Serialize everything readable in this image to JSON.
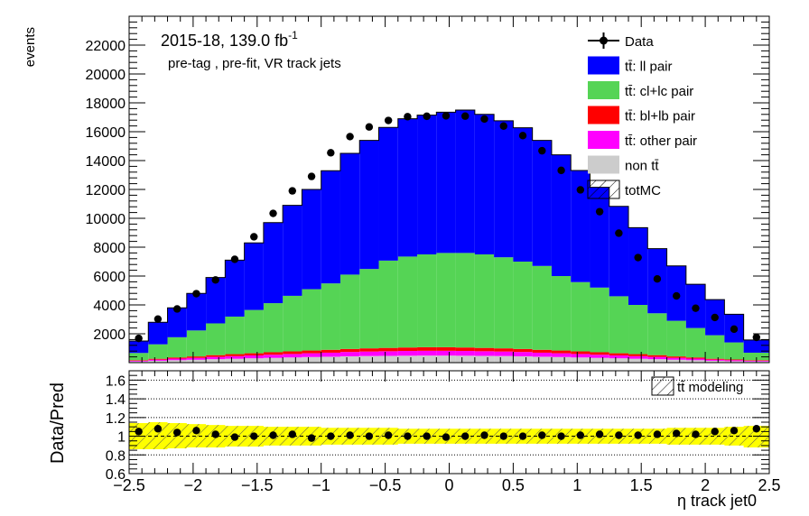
{
  "chart_data": {
    "type": "bar",
    "stacked": true,
    "y_axis_label": "events",
    "x_axis_label": "η track jet0",
    "annotation": {
      "lumi_prefix": "2015-18, 139.0 fb",
      "lumi_exp": "-1",
      "selection": "pre-tag ,  pre-fit, VR track jets"
    },
    "x_bins": [
      -2.5,
      -2.35,
      -2.2,
      -2.05,
      -1.9,
      -1.75,
      -1.6,
      -1.45,
      -1.3,
      -1.15,
      -1.0,
      -0.85,
      -0.7,
      -0.55,
      -0.4,
      -0.25,
      -0.1,
      0.05,
      0.2,
      0.35,
      0.5,
      0.65,
      0.8,
      0.95,
      1.1,
      1.25,
      1.4,
      1.55,
      1.7,
      1.85,
      2.0,
      2.15,
      2.3,
      2.5
    ],
    "xlim": [
      -2.5,
      2.5
    ],
    "main_ylim": [
      0,
      24000
    ],
    "main_yticks": [
      2000,
      4000,
      6000,
      8000,
      10000,
      12000,
      14000,
      16000,
      18000,
      20000,
      22000
    ],
    "series": [
      {
        "name": "non tt̄",
        "color": "#cccccc",
        "values": [
          80,
          130,
          170,
          200,
          240,
          270,
          300,
          330,
          360,
          390,
          410,
          440,
          460,
          470,
          480,
          490,
          490,
          480,
          470,
          460,
          440,
          410,
          390,
          360,
          330,
          300,
          270,
          240,
          200,
          170,
          130,
          100,
          80
        ]
      },
      {
        "name": "tt̄: other pair",
        "color": "#ff00ff",
        "values": [
          50,
          80,
          110,
          130,
          160,
          180,
          200,
          220,
          240,
          260,
          280,
          300,
          310,
          320,
          330,
          330,
          330,
          330,
          320,
          310,
          300,
          280,
          260,
          240,
          220,
          200,
          180,
          160,
          130,
          110,
          80,
          70,
          50
        ]
      },
      {
        "name": "tt̄: bl+lb pair",
        "color": "#ff0000",
        "values": [
          40,
          60,
          80,
          100,
          120,
          140,
          150,
          170,
          180,
          190,
          200,
          210,
          220,
          230,
          240,
          250,
          250,
          240,
          230,
          220,
          210,
          200,
          190,
          180,
          170,
          150,
          140,
          120,
          100,
          80,
          60,
          50,
          40
        ]
      },
      {
        "name": "tt̄: cl+lc pair",
        "color": "#55d455",
        "values": [
          500,
          1000,
          1400,
          1800,
          2200,
          2600,
          3000,
          3400,
          3850,
          4250,
          4600,
          5150,
          5500,
          6050,
          6300,
          6430,
          6530,
          6550,
          6480,
          6310,
          6050,
          5810,
          5160,
          4800,
          4480,
          3950,
          3410,
          2900,
          2470,
          2040,
          1630,
          1180,
          520
        ]
      },
      {
        "name": "tt̄: ll pair",
        "color": "#0000ff",
        "values": [
          830,
          1530,
          2040,
          2570,
          3180,
          3910,
          4650,
          5580,
          6270,
          6910,
          7810,
          8400,
          8910,
          9230,
          9550,
          9650,
          9750,
          9900,
          9700,
          9460,
          9270,
          8700,
          8400,
          7730,
          6950,
          6230,
          5350,
          4480,
          3800,
          3030,
          2470,
          1950,
          880
        ]
      }
    ],
    "data_points": {
      "name": "Data",
      "values": [
        1680,
        3020,
        3720,
        4780,
        5730,
        7160,
        8720,
        10340,
        11900,
        12900,
        14540,
        15660,
        16330,
        16780,
        17040,
        17070,
        17100,
        17080,
        16880,
        16390,
        15730,
        14680,
        13320,
        11970,
        10460,
        8970,
        7280,
        5800,
        4620,
        3770,
        3130,
        2320,
        1750
      ]
    },
    "totmc_label": "totMC",
    "ratio": {
      "ylabel": "Data/Pred",
      "ylim": [
        0.6,
        1.7
      ],
      "yticks": [
        0.6,
        0.8,
        1,
        1.2,
        1.4,
        1.6
      ],
      "values": [
        1.05,
        1.08,
        1.04,
        1.06,
        1.02,
        0.99,
        1.0,
        1.01,
        1.02,
        0.98,
        1.0,
        1.01,
        1.0,
        1.01,
        1.0,
        1.0,
        0.99,
        1.0,
        1.01,
        1.0,
        1.0,
        1.01,
        1.0,
        1.01,
        1.02,
        1.01,
        1.01,
        1.02,
        1.03,
        1.02,
        1.05,
        1.06,
        1.08
      ],
      "band_lo": [
        0.86,
        0.86,
        0.87,
        0.88,
        0.88,
        0.89,
        0.89,
        0.9,
        0.9,
        0.9,
        0.91,
        0.91,
        0.91,
        0.91,
        0.92,
        0.92,
        0.92,
        0.92,
        0.92,
        0.92,
        0.92,
        0.92,
        0.92,
        0.92,
        0.92,
        0.92,
        0.92,
        0.92,
        0.91,
        0.91,
        0.91,
        0.9,
        0.88
      ],
      "band_hi": [
        1.14,
        1.15,
        1.14,
        1.13,
        1.12,
        1.11,
        1.11,
        1.1,
        1.1,
        1.1,
        1.09,
        1.09,
        1.09,
        1.09,
        1.08,
        1.08,
        1.08,
        1.08,
        1.08,
        1.08,
        1.08,
        1.08,
        1.08,
        1.08,
        1.08,
        1.08,
        1.08,
        1.08,
        1.09,
        1.09,
        1.09,
        1.1,
        1.11
      ],
      "band_label": "tt̄ modeling",
      "gridlines": [
        0.8,
        1.2,
        1.4,
        1.6
      ]
    },
    "xticks": [
      -2.5,
      -2,
      -1.5,
      -1,
      -0.5,
      0,
      0.5,
      1,
      1.5,
      2,
      2.5
    ],
    "xtick_labels": [
      "−2.5",
      "−2",
      "−1.5",
      "−1",
      "−0.5",
      "0",
      "0.5",
      "1",
      "1.5",
      "2",
      "2.5"
    ]
  }
}
